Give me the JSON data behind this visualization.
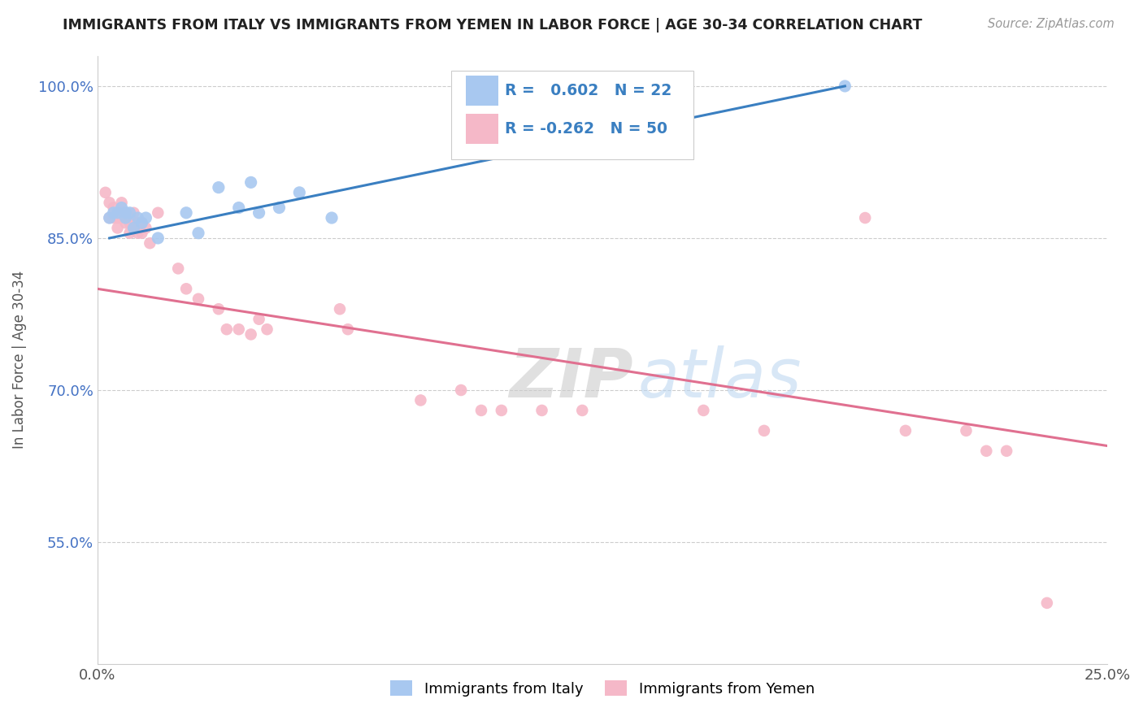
{
  "title": "IMMIGRANTS FROM ITALY VS IMMIGRANTS FROM YEMEN IN LABOR FORCE | AGE 30-34 CORRELATION CHART",
  "source": "Source: ZipAtlas.com",
  "ylabel": "In Labor Force | Age 30-34",
  "xlim": [
    0.0,
    0.25
  ],
  "ylim": [
    0.43,
    1.03
  ],
  "yticks": [
    0.55,
    0.7,
    0.85,
    1.0
  ],
  "ytick_labels": [
    "55.0%",
    "70.0%",
    "85.0%",
    "100.0%"
  ],
  "xticks": [
    0.0,
    0.05,
    0.1,
    0.15,
    0.2,
    0.25
  ],
  "xtick_labels": [
    "0.0%",
    "",
    "",
    "",
    "",
    "25.0%"
  ],
  "italy_color": "#A8C8F0",
  "yemen_color": "#F5B8C8",
  "italy_R": 0.602,
  "italy_N": 22,
  "yemen_R": -0.262,
  "yemen_N": 50,
  "trend_italy_color": "#3A7FC1",
  "trend_yemen_color": "#E07090",
  "watermark_zip": "ZIP",
  "watermark_atlas": "atlas",
  "italy_x": [
    0.003,
    0.004,
    0.005,
    0.006,
    0.007,
    0.007,
    0.008,
    0.009,
    0.01,
    0.011,
    0.012,
    0.015,
    0.022,
    0.025,
    0.03,
    0.035,
    0.038,
    0.04,
    0.045,
    0.05,
    0.058,
    0.185
  ],
  "italy_y": [
    0.87,
    0.875,
    0.875,
    0.88,
    0.87,
    0.875,
    0.875,
    0.86,
    0.87,
    0.865,
    0.87,
    0.85,
    0.875,
    0.855,
    0.9,
    0.88,
    0.905,
    0.875,
    0.88,
    0.895,
    0.87,
    1.0
  ],
  "yemen_x": [
    0.002,
    0.003,
    0.003,
    0.004,
    0.004,
    0.005,
    0.005,
    0.006,
    0.006,
    0.006,
    0.007,
    0.007,
    0.007,
    0.008,
    0.008,
    0.008,
    0.009,
    0.009,
    0.01,
    0.01,
    0.011,
    0.011,
    0.012,
    0.013,
    0.015,
    0.02,
    0.022,
    0.025,
    0.03,
    0.032,
    0.035,
    0.038,
    0.04,
    0.042,
    0.06,
    0.062,
    0.08,
    0.09,
    0.095,
    0.1,
    0.11,
    0.12,
    0.15,
    0.165,
    0.19,
    0.2,
    0.215,
    0.22,
    0.225,
    0.235
  ],
  "yemen_y": [
    0.895,
    0.885,
    0.87,
    0.88,
    0.87,
    0.87,
    0.86,
    0.885,
    0.875,
    0.87,
    0.875,
    0.87,
    0.865,
    0.87,
    0.865,
    0.855,
    0.875,
    0.86,
    0.865,
    0.855,
    0.865,
    0.855,
    0.86,
    0.845,
    0.875,
    0.82,
    0.8,
    0.79,
    0.78,
    0.76,
    0.76,
    0.755,
    0.77,
    0.76,
    0.78,
    0.76,
    0.69,
    0.7,
    0.68,
    0.68,
    0.68,
    0.68,
    0.68,
    0.66,
    0.87,
    0.66,
    0.66,
    0.64,
    0.64,
    0.49
  ],
  "italy_trend_x": [
    0.003,
    0.185
  ],
  "italy_trend_y": [
    0.85,
    1.0
  ],
  "yemen_trend_x": [
    0.0,
    0.25
  ],
  "yemen_trend_y": [
    0.8,
    0.645
  ]
}
